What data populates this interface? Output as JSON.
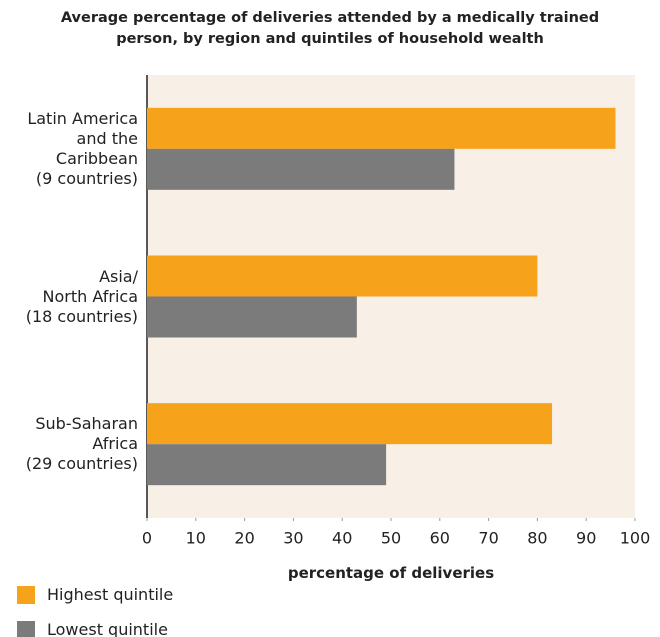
{
  "chart_data": {
    "type": "hbar",
    "title": "Average percentage of deliveries attended by a medically trained\nperson, by region and quintiles of household wealth",
    "categories": [
      "Latin America\nand the\nCaribbean\n(9 countries)",
      "Asia/\nNorth Africa\n(18 countries)",
      "Sub-Saharan\nAfrica\n(29 countries)"
    ],
    "series": [
      {
        "name": "Highest quintile",
        "color": "#f7a21b",
        "values": [
          96,
          80,
          83
        ]
      },
      {
        "name": "Lowest quintile",
        "color": "#7b7b7b",
        "values": [
          63,
          43,
          49
        ]
      }
    ],
    "xlabel": "percentage of deliveries",
    "xlim": [
      0,
      100
    ],
    "xticks": [
      0,
      10,
      20,
      30,
      40,
      50,
      60,
      70,
      80,
      90,
      100
    ],
    "background": "#f8efe6"
  }
}
